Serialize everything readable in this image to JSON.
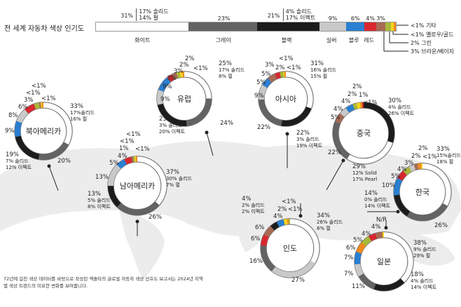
{
  "title": "전 세계 자동차 색상 인기도",
  "colors": {
    "white": "#ffffff",
    "gray": "#636363",
    "black": "#1c1c1c",
    "silver": "#c9c9c9",
    "blue": "#2a7fd1",
    "red": "#d9272e",
    "brown": "#a66a55",
    "green": "#a8b83a",
    "yellow": "#f7d31c",
    "other": "#f08a1e"
  },
  "global_bar": {
    "segments": [
      {
        "key": "white",
        "value": 31,
        "label": "31%",
        "name": "화이트",
        "detail": [
          "17% 솔리드",
          "14% 펄"
        ]
      },
      {
        "key": "gray",
        "value": 23,
        "label": "23%",
        "name": "그레이"
      },
      {
        "key": "black",
        "value": 21,
        "label": "21%",
        "name": "블랙",
        "detail": [
          "4% 솔리드",
          "17% 이펙트"
        ]
      },
      {
        "key": "silver",
        "value": 9,
        "label": "9%",
        "name": "실버"
      },
      {
        "key": "blue",
        "value": 6,
        "label": "6%",
        "name": "블루"
      },
      {
        "key": "red",
        "value": 4,
        "label": "4%",
        "name": "레드"
      },
      {
        "key": "brown",
        "value": 3,
        "label": "3%"
      },
      {
        "key": "green",
        "value": 2
      },
      {
        "key": "yellow",
        "value": 0.8
      },
      {
        "key": "other",
        "value": 0.8
      }
    ],
    "legend": [
      "<1% 기타",
      "<1% 옐로우/골드",
      "2% 그린",
      "3% 브라운/베이지"
    ]
  },
  "chart_data": [
    {
      "type": "donut",
      "region": "북아메리카",
      "segments": [
        {
          "key": "white",
          "value": 33,
          "label": "33%",
          "detail": [
            "17%솔리드",
            "16% 펄"
          ]
        },
        {
          "key": "gray",
          "value": 20,
          "label": "20%"
        },
        {
          "key": "black",
          "value": 19,
          "label": "19%",
          "detail": [
            "7% 솔리드",
            "12% 이펙트"
          ]
        },
        {
          "key": "blue",
          "value": 9,
          "label": "9%"
        },
        {
          "key": "silver",
          "value": 8,
          "label": "8%"
        },
        {
          "key": "red",
          "value": 6,
          "label": "6%"
        },
        {
          "key": "green",
          "value": 3,
          "label": "3%"
        },
        {
          "key": "brown",
          "value": 0.8,
          "label": "<1%"
        },
        {
          "key": "yellow",
          "value": 0.8,
          "label": "<1%"
        },
        {
          "key": "other",
          "value": 0.8,
          "label": "<1%"
        }
      ]
    },
    {
      "type": "donut",
      "region": "유럽",
      "segments": [
        {
          "key": "white",
          "value": 25,
          "label": "25%",
          "detail": [
            "17% 솔리드",
            "8% 펄"
          ]
        },
        {
          "key": "gray",
          "value": 24,
          "label": "24%"
        },
        {
          "key": "black",
          "value": 23,
          "label": "23%",
          "detail": [
            "3% 솔리드",
            "20% 이펙트"
          ]
        },
        {
          "key": "silver",
          "value": 9,
          "label": "9%"
        },
        {
          "key": "blue",
          "value": 9,
          "label": "9%"
        },
        {
          "key": "red",
          "value": 3,
          "label": "3%"
        },
        {
          "key": "brown",
          "value": 3,
          "label": "3%"
        },
        {
          "key": "green",
          "value": 2,
          "label": "2%"
        },
        {
          "key": "yellow",
          "value": 2,
          "label": "2%"
        },
        {
          "key": "other",
          "value": 0.8,
          "label": "<1%"
        }
      ]
    },
    {
      "type": "donut",
      "region": "아시아",
      "segments": [
        {
          "key": "white",
          "value": 31,
          "label": "31%",
          "detail": [
            "16% 솔리드",
            "15% 펄"
          ]
        },
        {
          "key": "black",
          "value": 22,
          "label": "22%",
          "detail": [
            "3% 솔리드",
            "19% 이펙트"
          ]
        },
        {
          "key": "gray",
          "value": 22,
          "label": "22%"
        },
        {
          "key": "silver",
          "value": 9,
          "label": "9%"
        },
        {
          "key": "blue",
          "value": 5,
          "label": "5%"
        },
        {
          "key": "brown",
          "value": 5,
          "label": "5%"
        },
        {
          "key": "red",
          "value": 3,
          "label": "3%"
        },
        {
          "key": "green",
          "value": 2,
          "label": "2%"
        },
        {
          "key": "yellow",
          "value": 0.8,
          "label": "<1%"
        },
        {
          "key": "other",
          "value": 0.8,
          "label": "<1%"
        }
      ]
    },
    {
      "type": "donut",
      "region": "중국",
      "segments": [
        {
          "key": "black",
          "value": 30,
          "label": "30%",
          "detail": [
            "4% 솔리드",
            "26% 이펙트"
          ]
        },
        {
          "key": "white",
          "value": 29,
          "label": "29%",
          "detail": [
            "12% Solid",
            "17% Pearl"
          ]
        },
        {
          "key": "gray",
          "value": 22,
          "label": "22%"
        },
        {
          "key": "brown",
          "value": 5,
          "label": "5%"
        },
        {
          "key": "silver",
          "value": 4,
          "label": "4%"
        },
        {
          "key": "blue",
          "value": 4,
          "label": "4%"
        },
        {
          "key": "green",
          "value": 2,
          "label": "2%"
        },
        {
          "key": "yellow",
          "value": 2,
          "label": "2%"
        },
        {
          "key": "other",
          "value": 1,
          "label": "1%"
        },
        {
          "key": "red",
          "value": 0.8,
          "label": "<1%"
        }
      ]
    },
    {
      "type": "donut",
      "region": "남아메리카",
      "segments": [
        {
          "key": "white",
          "value": 37,
          "label": "37%",
          "detail": [
            "30% 솔리드",
            "7% 펄"
          ]
        },
        {
          "key": "gray",
          "value": 26,
          "label": "26%"
        },
        {
          "key": "black",
          "value": 13,
          "label": "13%",
          "detail": [
            "5% 솔리드",
            "8% 이펙트"
          ]
        },
        {
          "key": "silver",
          "value": 13,
          "label": "13%"
        },
        {
          "key": "blue",
          "value": 5,
          "label": "5%"
        },
        {
          "key": "red",
          "value": 4,
          "label": "4%"
        },
        {
          "key": "brown",
          "value": 1,
          "label": "1%"
        },
        {
          "key": "green",
          "value": 0.8,
          "label": "<1%"
        },
        {
          "key": "yellow",
          "value": 0.8,
          "label": "<1%"
        },
        {
          "key": "other",
          "value": 0.8,
          "label": "<1%"
        }
      ]
    },
    {
      "type": "donut",
      "region": "한국",
      "segments": [
        {
          "key": "white",
          "value": 33,
          "label": "33%",
          "detail": [
            "15%솔리드",
            "18% 펄"
          ]
        },
        {
          "key": "gray",
          "value": 26,
          "label": "26%"
        },
        {
          "key": "black",
          "value": 14,
          "label": "14%",
          "detail": [
            "0% 솔리드",
            "14% 이펙트"
          ]
        },
        {
          "key": "blue",
          "value": 10,
          "label": "10%"
        },
        {
          "key": "red",
          "value": 5,
          "label": "5%"
        },
        {
          "key": "green",
          "value": 4,
          "label": "4%"
        },
        {
          "key": "silver",
          "value": 3,
          "label": "3%"
        },
        {
          "key": "brown",
          "value": 2,
          "label": "2%"
        },
        {
          "key": "other",
          "value": 2,
          "label": "2%"
        },
        {
          "key": "yellow",
          "value": 0.8,
          "label": "<1%"
        }
      ]
    },
    {
      "type": "donut",
      "region": "인도",
      "segments": [
        {
          "key": "white",
          "value": 34,
          "label": "34%",
          "detail": [
            "26% 솔리드",
            "8% 펄"
          ]
        },
        {
          "key": "silver",
          "value": 27,
          "label": "27%"
        },
        {
          "key": "gray",
          "value": 16,
          "label": "16%"
        },
        {
          "key": "red",
          "value": 6,
          "label": "6%"
        },
        {
          "key": "brown",
          "value": 6,
          "label": "6%"
        },
        {
          "key": "black",
          "value": 4,
          "label": "4%",
          "detail": [
            "2% 솔리드",
            "2% 이펙트"
          ]
        },
        {
          "key": "blue",
          "value": 4,
          "label": "4%"
        },
        {
          "key": "yellow",
          "value": 2,
          "label": "2%"
        },
        {
          "key": "other",
          "value": 0.8,
          "label": "<1%"
        },
        {
          "key": "green",
          "value": 0.8,
          "label": "<1%"
        }
      ]
    },
    {
      "type": "donut",
      "region": "일본",
      "segments": [
        {
          "key": "white",
          "value": 38,
          "label": "38%",
          "detail": [
            "9% 솔리드",
            "29% 펄"
          ]
        },
        {
          "key": "black",
          "value": 18,
          "label": "18%",
          "detail": [
            "4% 솔리드",
            "14% 이펙트"
          ]
        },
        {
          "key": "gray",
          "value": 11,
          "label": "11%"
        },
        {
          "key": "silver",
          "value": 7,
          "label": "7%"
        },
        {
          "key": "blue",
          "value": 7,
          "label": "7%"
        },
        {
          "key": "other",
          "value": 6,
          "label": "6%"
        },
        {
          "key": "green",
          "value": 5,
          "label": "5%"
        },
        {
          "key": "red",
          "value": 4,
          "label": "4%"
        },
        {
          "key": "brown",
          "value": 4,
          "label": "4%"
        },
        {
          "key": "yellow",
          "value": 0.8,
          "label": "N/R"
        }
      ]
    }
  ],
  "note": "72년에 걸친 색상 데이터를 바탕으로 작성된 엑솔타의 글로벌 자동차 색상 선호도 보고서는 2024년 지역별 색상 트렌드의 미묘한 변화를 보여줍니다."
}
